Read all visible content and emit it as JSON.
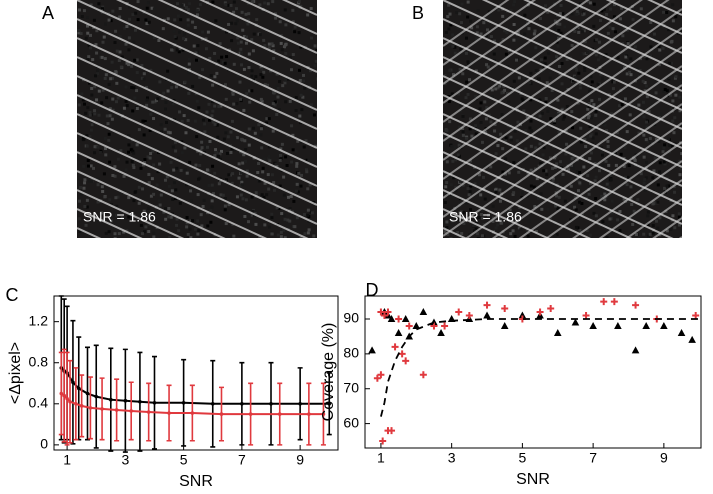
{
  "chart_data": [
    {
      "type": "image",
      "label": "A",
      "annotation": "SNR = 1.86"
    },
    {
      "type": "image",
      "label": "B",
      "annotation": "SNR = 1.86"
    },
    {
      "type": "errorbar",
      "label": "C",
      "xlabel": "SNR",
      "ylabel": "<Δpixel>",
      "xlim": [
        0.55,
        10.3
      ],
      "ylim": [
        -0.05,
        1.45
      ],
      "xticks": [
        1,
        3,
        5,
        7,
        9
      ],
      "yticks": [
        0,
        0.4,
        0.8,
        1.2
      ],
      "series": [
        {
          "color": "#000000",
          "x": [
            0.8,
            0.9,
            1.0,
            1.2,
            1.4,
            1.7,
            2.0,
            2.5,
            3.0,
            3.5,
            4.0,
            5.0,
            6.0,
            7.0,
            8.0,
            9.0,
            10.0
          ],
          "values": [
            0.75,
            0.72,
            0.7,
            0.61,
            0.55,
            0.5,
            0.47,
            0.44,
            0.43,
            0.42,
            0.41,
            0.41,
            0.4,
            0.4,
            0.4,
            0.4,
            0.4
          ],
          "errors": [
            0.7,
            0.7,
            0.65,
            0.6,
            0.5,
            0.45,
            0.5,
            0.5,
            0.5,
            0.48,
            0.45,
            0.42,
            0.42,
            0.4,
            0.4,
            0.35,
            0.3
          ]
        },
        {
          "color": "#e0393e",
          "x": [
            0.8,
            0.9,
            1.0,
            1.1,
            1.3,
            1.5,
            1.8,
            2.2,
            2.7,
            3.2,
            3.8,
            4.5,
            5.3,
            6.3,
            7.3,
            8.3,
            9.3,
            9.8
          ],
          "values": [
            0.5,
            0.48,
            0.45,
            0.42,
            0.4,
            0.38,
            0.36,
            0.35,
            0.34,
            0.33,
            0.32,
            0.31,
            0.31,
            0.3,
            0.3,
            0.3,
            0.3,
            0.3
          ],
          "errors": [
            0.4,
            0.45,
            0.45,
            0.4,
            0.35,
            0.3,
            0.3,
            0.3,
            0.3,
            0.28,
            0.28,
            0.27,
            0.27,
            0.26,
            0.3,
            0.3,
            0.3,
            0.3
          ]
        }
      ]
    },
    {
      "type": "scatter",
      "label": "D",
      "xlabel": "SNR",
      "ylabel": "Coverage (%)",
      "xlim": [
        0.55,
        10.05
      ],
      "ylim": [
        53,
        96.6
      ],
      "xticks": [
        1,
        3,
        5,
        7,
        9
      ],
      "yticks": [
        60,
        70,
        80,
        90
      ],
      "series": [
        {
          "color": "#000000",
          "marker": "triangle",
          "x": [
            0.75,
            1.1,
            1.2,
            1.3,
            1.5,
            1.7,
            1.8,
            2.0,
            2.2,
            2.5,
            2.7,
            3.0,
            3.5,
            4.0,
            4.5,
            5.0,
            5.5,
            6.0,
            6.5,
            7.0,
            7.7,
            8.2,
            8.5,
            9.0,
            9.5,
            9.8
          ],
          "values": [
            81,
            92,
            91,
            90,
            86,
            90,
            85,
            88,
            92,
            89,
            86,
            90,
            90,
            91,
            88,
            91,
            91,
            86,
            89,
            88,
            88,
            81,
            88,
            88,
            86,
            84
          ]
        },
        {
          "color": "#e0393e",
          "marker": "plus",
          "x": [
            0.9,
            1.0,
            1.05,
            1.2,
            1.3,
            1.1,
            1.2,
            1.4,
            1.6,
            1.7,
            1.8,
            2.2,
            2.5,
            2.8,
            3.2,
            3.5,
            4.0,
            4.5,
            5.0,
            5.5,
            5.8,
            6.8,
            7.3,
            7.6,
            8.2,
            8.8,
            9.9,
            1.5,
            1.0
          ],
          "values": [
            73,
            74,
            55,
            58,
            58,
            91,
            92,
            82,
            80,
            78,
            88,
            74,
            88,
            88,
            92,
            91,
            94,
            93,
            90,
            92,
            93,
            91,
            95,
            95,
            94,
            90,
            91,
            90,
            92
          ]
        },
        {
          "color": "#000000",
          "line": "dashed",
          "x": [
            1.0,
            1.1,
            1.2,
            1.4,
            1.6,
            1.8,
            2.0,
            2.5,
            3.0,
            4.0,
            5.0,
            6.0,
            7.0,
            8.0,
            9.0,
            10.0
          ],
          "values": [
            62,
            66,
            72,
            78,
            82,
            85,
            87,
            89,
            89.5,
            90,
            90,
            90,
            90,
            90,
            90,
            90
          ]
        }
      ]
    }
  ]
}
